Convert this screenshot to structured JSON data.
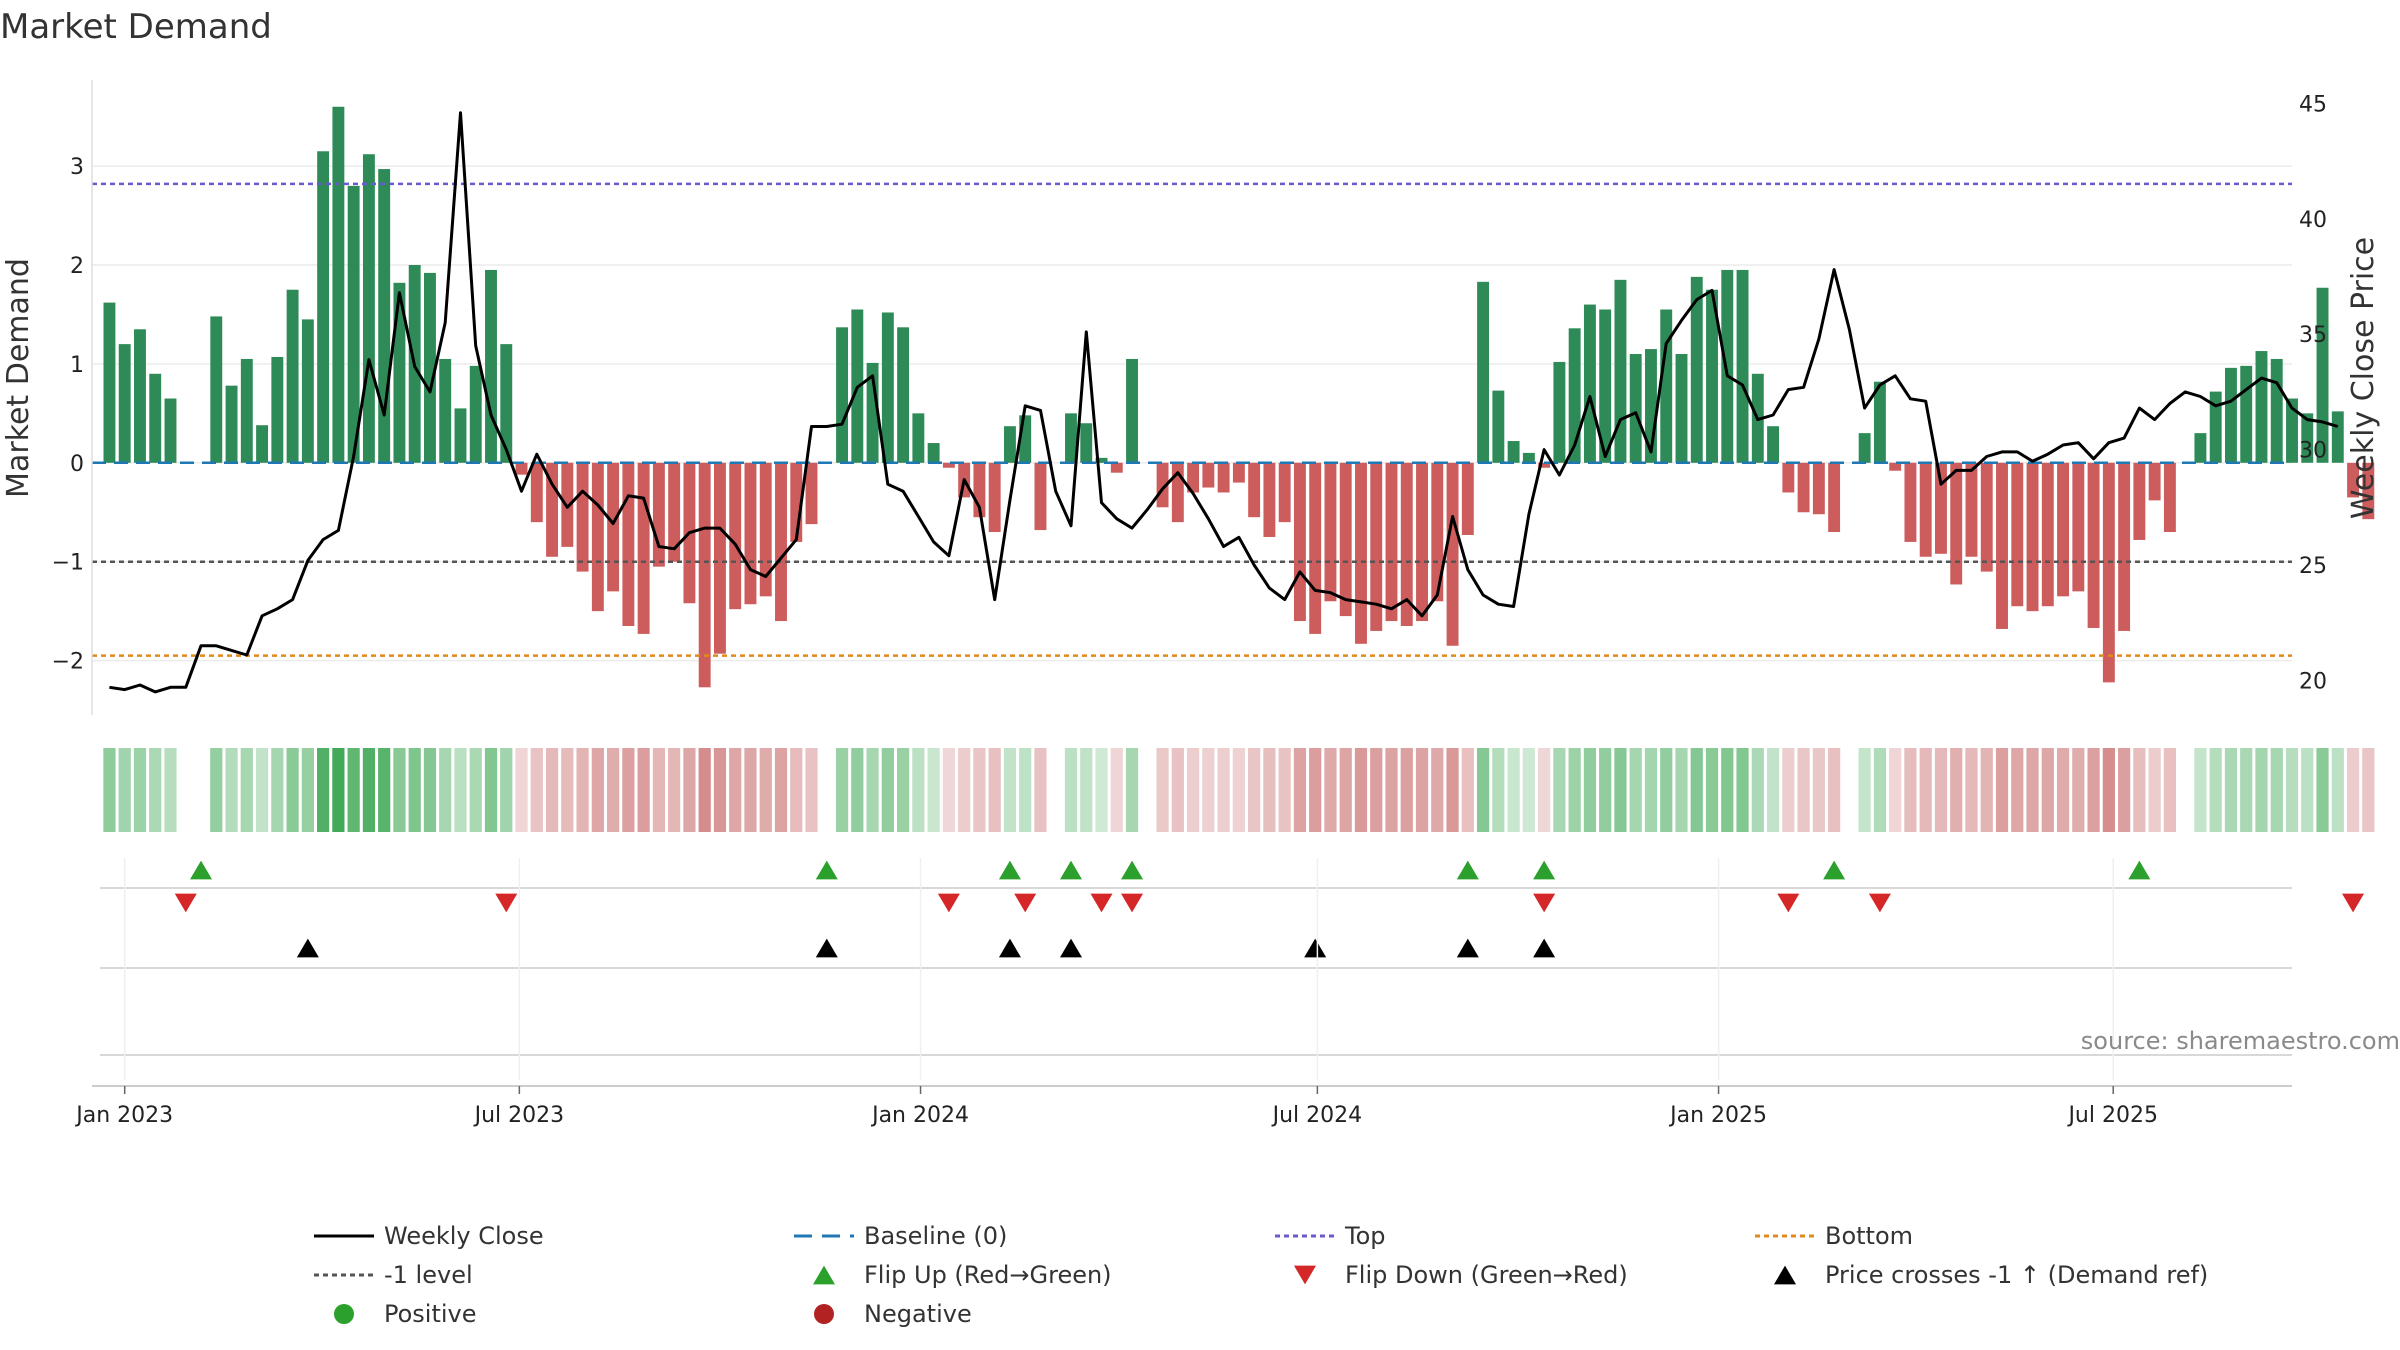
{
  "chart_data": {
    "type": "bar",
    "title": "Market Demand",
    "ylabel": "Market Demand",
    "y2label": "Weekly Close Price",
    "ylim": [
      -2.55,
      3.82
    ],
    "y2lim": [
      18.5,
      45.8
    ],
    "yticks": [
      -2,
      -1,
      0,
      1,
      2,
      3
    ],
    "yticklabels": [
      "−2",
      "−1",
      "0",
      "1",
      "2",
      "3"
    ],
    "y2ticks": [
      20,
      25,
      30,
      35,
      40,
      45
    ],
    "start_date": "2022-12-25",
    "week_days": 7,
    "x_start_date": "2022-12-17",
    "x_end_date": "2025-09-21",
    "xticks": [
      {
        "date": "2023-01-01",
        "label": "Jan 2023"
      },
      {
        "date": "2023-07-01",
        "label": "Jul 2023"
      },
      {
        "date": "2024-01-01",
        "label": "Jan 2024"
      },
      {
        "date": "2024-07-01",
        "label": "Jul 2024"
      },
      {
        "date": "2025-01-01",
        "label": "Jan 2025"
      },
      {
        "date": "2025-07-01",
        "label": "Jul 2025"
      }
    ],
    "levels": {
      "top": 2.82,
      "minus_one": -1.0,
      "bottom": -1.95,
      "baseline": 0
    },
    "demand": [
      1.62,
      1.2,
      1.35,
      0.9,
      0.65,
      0,
      0,
      1.48,
      0.78,
      1.05,
      0.38,
      1.07,
      1.75,
      1.45,
      3.15,
      3.6,
      2.8,
      3.12,
      2.97,
      1.82,
      2.0,
      1.92,
      1.05,
      0.55,
      0.98,
      1.95,
      1.2,
      -0.12,
      -0.6,
      -0.95,
      -0.85,
      -1.1,
      -1.5,
      -1.3,
      -1.65,
      -1.73,
      -1.05,
      -1.0,
      -1.42,
      -2.27,
      -1.93,
      -1.48,
      -1.43,
      -1.35,
      -1.6,
      -0.8,
      -0.62,
      0,
      1.37,
      1.55,
      1.01,
      1.52,
      1.37,
      0.5,
      0.2,
      -0.05,
      -0.35,
      -0.55,
      -0.7,
      0.37,
      0.48,
      -0.68,
      0,
      0.5,
      0.4,
      0.05,
      -0.1,
      1.05,
      0,
      -0.45,
      -0.6,
      -0.3,
      -0.25,
      -0.3,
      -0.2,
      -0.55,
      -0.75,
      -0.6,
      -1.6,
      -1.73,
      -1.4,
      -1.55,
      -1.83,
      -1.7,
      -1.6,
      -1.65,
      -1.6,
      -1.4,
      -1.85,
      -0.73,
      1.83,
      0.73,
      0.22,
      0.1,
      -0.05,
      1.02,
      1.36,
      1.6,
      1.55,
      1.85,
      1.1,
      1.15,
      1.55,
      1.1,
      1.88,
      1.75,
      1.95,
      1.95,
      0.9,
      0.37,
      -0.3,
      -0.5,
      -0.52,
      -0.7,
      0,
      0.3,
      0.82,
      -0.08,
      -0.8,
      -0.95,
      -0.92,
      -1.23,
      -0.95,
      -1.1,
      -1.68,
      -1.45,
      -1.5,
      -1.45,
      -1.35,
      -1.3,
      -1.67,
      -2.22,
      -1.7,
      -0.78,
      -0.38,
      -0.7,
      0,
      0.3,
      0.72,
      0.96,
      0.98,
      1.13,
      1.05,
      0.65,
      0.5,
      1.77,
      0.52,
      -0.35,
      -0.57
    ],
    "weekly_close": [
      19.7,
      19.6,
      19.8,
      19.5,
      19.7,
      19.7,
      21.5,
      21.5,
      21.3,
      21.1,
      22.8,
      23.1,
      23.5,
      25.2,
      26.1,
      26.5,
      29.7,
      33.9,
      31.5,
      36.8,
      33.6,
      32.5,
      35.5,
      44.6,
      34.5,
      31.5,
      30.0,
      28.2,
      29.8,
      28.5,
      27.5,
      28.2,
      27.6,
      26.8,
      28.0,
      27.9,
      25.8,
      25.7,
      26.4,
      26.6,
      26.6,
      25.9,
      24.8,
      24.5,
      25.3,
      26.1,
      31.0,
      31.0,
      31.1,
      32.7,
      33.2,
      28.5,
      28.2,
      27.1,
      26.0,
      25.4,
      28.7,
      27.5,
      23.5,
      27.8,
      31.9,
      31.7,
      28.2,
      26.7,
      35.1,
      27.7,
      27.0,
      26.6,
      27.4,
      28.3,
      29.0,
      28.1,
      27.0,
      25.8,
      26.2,
      25.0,
      24.0,
      23.5,
      24.7,
      23.9,
      23.8,
      23.5,
      23.4,
      23.3,
      23.1,
      23.5,
      22.8,
      23.7,
      27.1,
      24.8,
      23.7,
      23.3,
      23.2,
      27.2,
      30.0,
      28.9,
      30.2,
      32.3,
      29.7,
      31.3,
      31.6,
      29.9,
      34.6,
      35.6,
      36.5,
      36.9,
      33.2,
      32.8,
      31.3,
      31.5,
      32.6,
      32.7,
      34.8,
      37.8,
      35.2,
      31.8,
      32.8,
      33.2,
      32.2,
      32.1,
      28.5,
      29.1,
      29.1,
      29.7,
      29.9,
      29.9,
      29.5,
      29.8,
      30.2,
      30.3,
      29.6,
      30.3,
      30.5,
      31.8,
      31.3,
      32.0,
      32.5,
      32.3,
      31.9,
      32.1,
      32.6,
      33.1,
      32.9,
      31.8,
      31.3,
      31.2,
      31.0
    ],
    "signals": {
      "flip_up": [
        6,
        47,
        59,
        63,
        67,
        89,
        94,
        113,
        133
      ],
      "flip_down": [
        5,
        26,
        55,
        60,
        65,
        67,
        94,
        110,
        116,
        147
      ],
      "price_crosses": [
        13,
        47,
        59,
        63,
        79,
        89,
        94
      ]
    },
    "legend": [
      {
        "label": "Weekly Close",
        "marker": "line",
        "color": "#000000"
      },
      {
        "label": "Baseline (0)",
        "marker": "dash",
        "color": "#1f77b4"
      },
      {
        "label": "Top",
        "marker": "dot",
        "color": "#6a5acd"
      },
      {
        "label": "Bottom",
        "marker": "dot",
        "color": "#e08a1e"
      },
      {
        "label": "-1 level",
        "marker": "dot",
        "color": "#555555"
      },
      {
        "label": "Flip Up (Red→Green)",
        "marker": "tri-up",
        "color": "#2ca02c"
      },
      {
        "label": "Flip Down (Green→Red)",
        "marker": "tri-down",
        "color": "#d62728"
      },
      {
        "label": "Price crosses -1 ↑ (Demand ref)",
        "marker": "tri-up",
        "color": "#000000"
      },
      {
        "label": "Positive",
        "marker": "circle",
        "color": "#2ca02c"
      },
      {
        "label": "Negative",
        "marker": "circle",
        "color": "#b22222"
      }
    ],
    "source": "source: sharemaestro.com"
  },
  "colors": {
    "positive_bar": "#2e8b57",
    "negative_bar": "#cd5c5c",
    "close_line": "#000000"
  }
}
